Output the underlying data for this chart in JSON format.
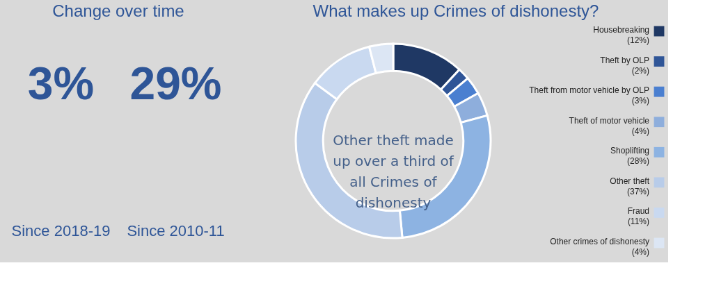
{
  "chart_data": [
    {
      "type": "other",
      "title": "Change over time",
      "annotations": [
        "3%",
        "29%",
        "Since 2018-19",
        "Since 2010-11"
      ]
    },
    {
      "type": "donut",
      "title": "What makes up Crimes of dishonesty?",
      "categories": [
        "Housebreaking",
        "Theft by OLP",
        "Theft from motor vehicle by OLP",
        "Theft of motor vehicle",
        "Shoplifting",
        "Other theft",
        "Fraud",
        "Other crimes of dishonesty"
      ],
      "values": [
        12,
        2,
        3,
        4,
        28,
        37,
        11,
        4
      ],
      "value_labels": [
        "(12%)",
        "(2%)",
        "(3%)",
        "(4%)",
        "(28%)",
        "(37%)",
        "(11%)",
        "(4%)"
      ],
      "colors": [
        "#1f3864",
        "#2f5597",
        "#4a7fd0",
        "#8eaedc",
        "#8db3e2",
        "#b8cce9",
        "#c9d9f0",
        "#dce6f4"
      ],
      "annotations": [
        "Other theft made up over a third of all Crimes of dishonesty"
      ],
      "legend": "right"
    }
  ]
}
